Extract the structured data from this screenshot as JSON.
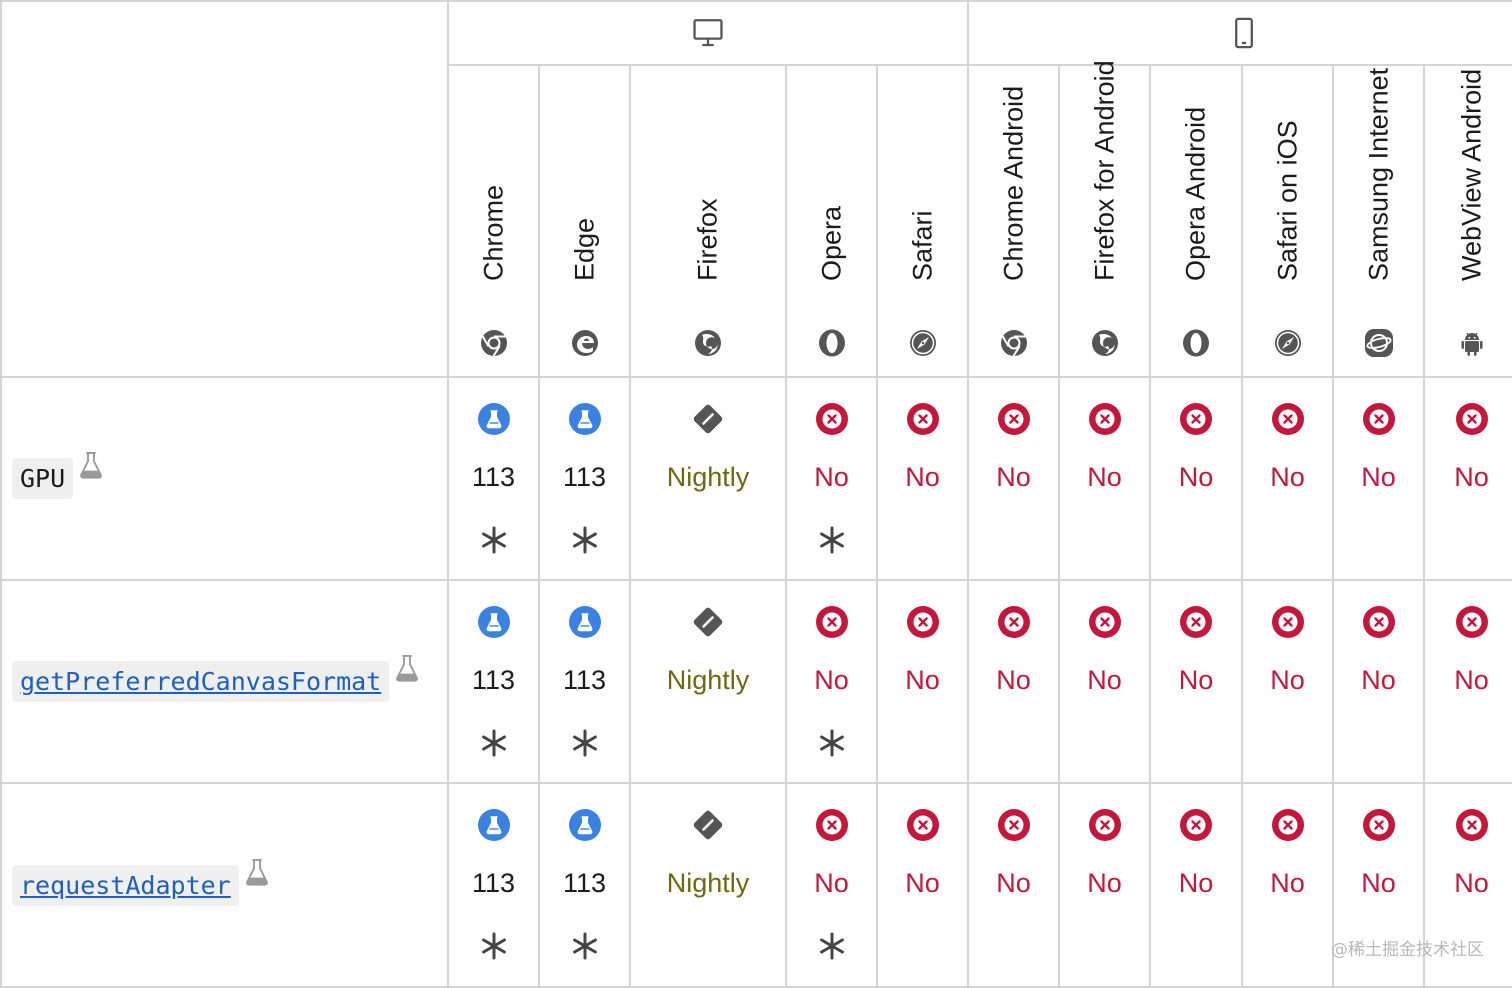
{
  "platforms": [
    {
      "name": "desktop-icon",
      "colspan": 5
    },
    {
      "name": "mobile-icon",
      "colspan": 6
    }
  ],
  "browsers": [
    {
      "key": "chrome",
      "name": "Chrome",
      "logo": "chrome-icon"
    },
    {
      "key": "edge",
      "name": "Edge",
      "logo": "edge-icon"
    },
    {
      "key": "firefox",
      "name": "Firefox",
      "logo": "firefox-icon"
    },
    {
      "key": "opera",
      "name": "Opera",
      "logo": "opera-icon"
    },
    {
      "key": "safari",
      "name": "Safari",
      "logo": "safari-icon"
    },
    {
      "key": "chrome-android",
      "name": "Chrome Android",
      "logo": "chrome-icon"
    },
    {
      "key": "firefox-android",
      "name": "Firefox for Android",
      "logo": "firefox-icon"
    },
    {
      "key": "opera-android",
      "name": "Opera Android",
      "logo": "opera-icon"
    },
    {
      "key": "safari-ios",
      "name": "Safari on iOS",
      "logo": "safari-icon"
    },
    {
      "key": "samsung-internet",
      "name": "Samsung Internet",
      "logo": "samsung-icon"
    },
    {
      "key": "webview-android",
      "name": "WebView Android",
      "logo": "android-icon"
    }
  ],
  "features": [
    {
      "name": "GPU",
      "link": false,
      "experimental_icon": "flask-icon",
      "support": [
        {
          "status": "experimental",
          "icon": "flask-icon",
          "text": "113",
          "note": true
        },
        {
          "status": "experimental",
          "icon": "flask-icon",
          "text": "113",
          "note": true
        },
        {
          "status": "nightly",
          "icon": "nightly-icon",
          "text": "Nightly",
          "note": false
        },
        {
          "status": "no",
          "icon": "no-support-icon",
          "text": "No",
          "note": true
        },
        {
          "status": "no",
          "icon": "no-support-icon",
          "text": "No",
          "note": false
        },
        {
          "status": "no",
          "icon": "no-support-icon",
          "text": "No",
          "note": false
        },
        {
          "status": "no",
          "icon": "no-support-icon",
          "text": "No",
          "note": false
        },
        {
          "status": "no",
          "icon": "no-support-icon",
          "text": "No",
          "note": false
        },
        {
          "status": "no",
          "icon": "no-support-icon",
          "text": "No",
          "note": false
        },
        {
          "status": "no",
          "icon": "no-support-icon",
          "text": "No",
          "note": false
        },
        {
          "status": "no",
          "icon": "no-support-icon",
          "text": "No",
          "note": false
        }
      ]
    },
    {
      "name": "getPreferredCanvasFormat",
      "link": true,
      "experimental_icon": "flask-icon",
      "support": [
        {
          "status": "experimental",
          "icon": "flask-icon",
          "text": "113",
          "note": true
        },
        {
          "status": "experimental",
          "icon": "flask-icon",
          "text": "113",
          "note": true
        },
        {
          "status": "nightly",
          "icon": "nightly-icon",
          "text": "Nightly",
          "note": false
        },
        {
          "status": "no",
          "icon": "no-support-icon",
          "text": "No",
          "note": true
        },
        {
          "status": "no",
          "icon": "no-support-icon",
          "text": "No",
          "note": false
        },
        {
          "status": "no",
          "icon": "no-support-icon",
          "text": "No",
          "note": false
        },
        {
          "status": "no",
          "icon": "no-support-icon",
          "text": "No",
          "note": false
        },
        {
          "status": "no",
          "icon": "no-support-icon",
          "text": "No",
          "note": false
        },
        {
          "status": "no",
          "icon": "no-support-icon",
          "text": "No",
          "note": false
        },
        {
          "status": "no",
          "icon": "no-support-icon",
          "text": "No",
          "note": false
        },
        {
          "status": "no",
          "icon": "no-support-icon",
          "text": "No",
          "note": false
        }
      ]
    },
    {
      "name": "requestAdapter",
      "link": true,
      "experimental_icon": "flask-icon",
      "support": [
        {
          "status": "experimental",
          "icon": "flask-icon",
          "text": "113",
          "note": true
        },
        {
          "status": "experimental",
          "icon": "flask-icon",
          "text": "113",
          "note": true
        },
        {
          "status": "nightly",
          "icon": "nightly-icon",
          "text": "Nightly",
          "note": false
        },
        {
          "status": "no",
          "icon": "no-support-icon",
          "text": "No",
          "note": true
        },
        {
          "status": "no",
          "icon": "no-support-icon",
          "text": "No",
          "note": false
        },
        {
          "status": "no",
          "icon": "no-support-icon",
          "text": "No",
          "note": false
        },
        {
          "status": "no",
          "icon": "no-support-icon",
          "text": "No",
          "note": false
        },
        {
          "status": "no",
          "icon": "no-support-icon",
          "text": "No",
          "note": false
        },
        {
          "status": "no",
          "icon": "no-support-icon",
          "text": "No",
          "note": false
        },
        {
          "status": "no",
          "icon": "no-support-icon",
          "text": "No",
          "note": false
        },
        {
          "status": "no",
          "icon": "no-support-icon",
          "text": "No",
          "note": false
        }
      ]
    }
  ],
  "watermark": "@稀土掘金技术社区",
  "colors": {
    "border": "#d4d4d4",
    "no": "#c3173b",
    "nightly": "#6b6a11",
    "experimental": "#3b82e0",
    "link": "#1e5fbf",
    "icon_gray": "#555555"
  }
}
